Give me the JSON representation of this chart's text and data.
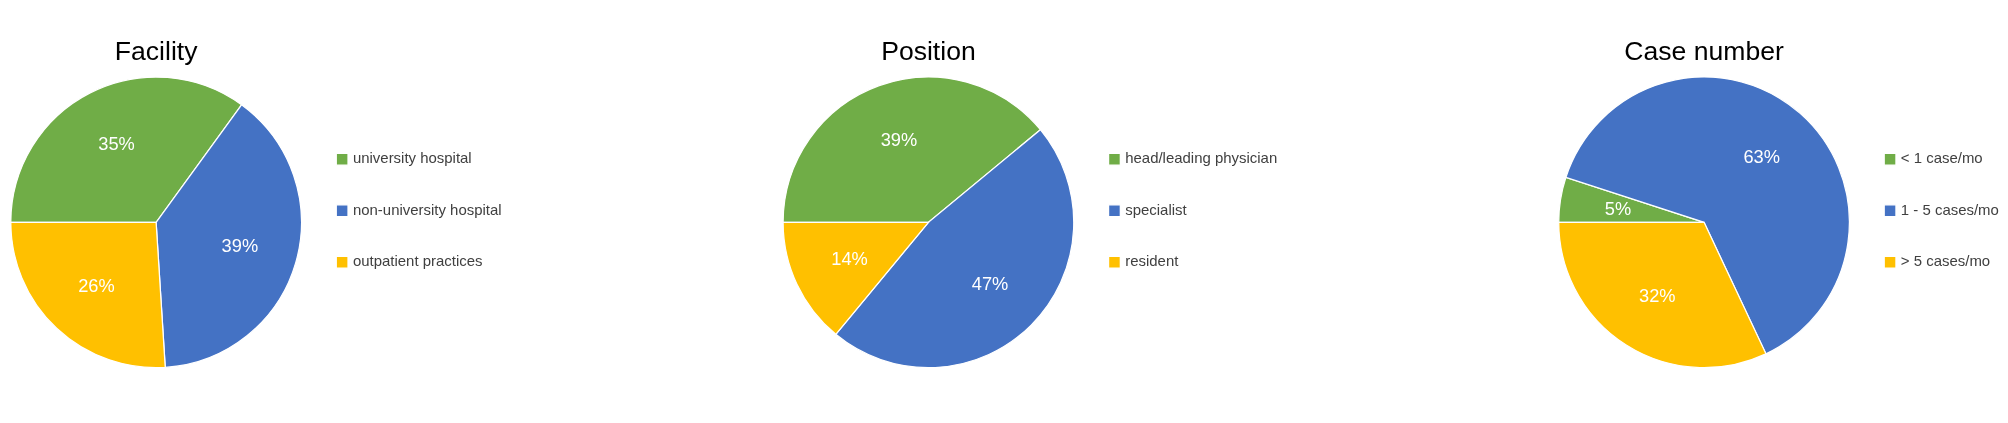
{
  "chart_data": [
    {
      "type": "pie",
      "title": "Facility",
      "categories": [
        "university hospital",
        "non-university hospital",
        "outpatient practices"
      ],
      "values": [
        35,
        39,
        26
      ],
      "colors": [
        "#70ad47",
        "#4472c4",
        "#ffc000"
      ],
      "value_labels": [
        "35%",
        "39%",
        "26%"
      ],
      "legend": "right"
    },
    {
      "type": "pie",
      "title": "Position",
      "categories": [
        "head/leading physician",
        "specialist",
        "resident"
      ],
      "values": [
        39,
        47,
        14
      ],
      "colors": [
        "#70ad47",
        "#4472c4",
        "#ffc000"
      ],
      "value_labels": [
        "39%",
        "47%",
        "14%"
      ],
      "legend": "right"
    },
    {
      "type": "pie",
      "title": "Case number",
      "categories": [
        "< 1 case/mo",
        "1 - 5  cases/mo",
        "> 5 cases/mo"
      ],
      "values": [
        5,
        63,
        32
      ],
      "colors": [
        "#70ad47",
        "#4472c4",
        "#ffc000"
      ],
      "value_labels": [
        "5%",
        "63%",
        "32%"
      ],
      "legend": "right"
    }
  ]
}
